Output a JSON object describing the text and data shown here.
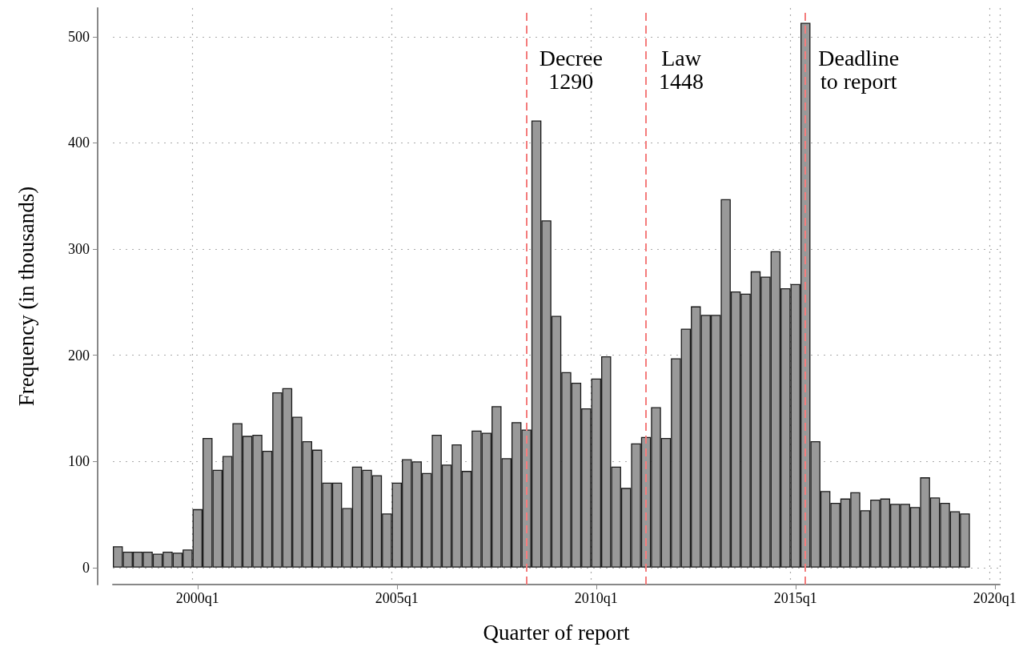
{
  "chart_data": {
    "type": "bar",
    "xlabel": "Quarter of report",
    "ylabel": "Frequency (in thousands)",
    "categories": [
      null,
      null,
      null,
      null,
      null,
      null,
      null,
      null,
      "2000q1",
      null,
      null,
      null,
      null,
      null,
      null,
      null,
      null,
      null,
      null,
      null,
      null,
      null,
      null,
      null,
      null,
      null,
      null,
      null,
      "2005q1",
      null,
      null,
      null,
      null,
      null,
      null,
      null,
      null,
      null,
      null,
      null,
      null,
      null,
      null,
      null,
      null,
      null,
      null,
      null,
      "2010q1",
      null,
      null,
      null,
      null,
      null,
      null,
      null,
      null,
      null,
      null,
      null,
      null,
      null,
      null,
      null,
      null,
      null,
      null,
      null,
      "2015q1",
      null,
      null,
      null,
      null,
      null,
      null,
      null,
      null,
      null,
      null,
      null,
      null,
      null,
      null,
      null,
      null,
      null,
      null,
      null,
      "2020q1"
    ],
    "values": [
      20,
      15,
      15,
      15,
      13,
      15,
      14,
      17,
      55,
      122,
      92,
      105,
      136,
      124,
      125,
      110,
      165,
      169,
      142,
      119,
      111,
      80,
      80,
      56,
      95,
      92,
      87,
      51,
      80,
      102,
      100,
      89,
      125,
      97,
      116,
      91,
      129,
      127,
      152,
      103,
      137,
      130,
      421,
      327,
      237,
      184,
      174,
      150,
      178,
      199,
      95,
      75,
      117,
      123,
      151,
      122,
      197,
      225,
      246,
      238,
      238,
      347,
      260,
      258,
      279,
      274,
      298,
      263,
      267,
      513,
      119,
      72,
      61,
      65,
      71,
      54,
      64,
      65,
      60,
      60,
      57,
      85,
      66,
      61,
      53,
      51,
      null,
      null,
      null
    ],
    "color": "#999999",
    "ylim": [
      -16,
      527
    ],
    "yticks": [
      0,
      100,
      200,
      300,
      400,
      500
    ],
    "grid": true,
    "annotations": [
      "Decree\n1290",
      "Law\n1448",
      "Deadline\nto report"
    ]
  }
}
